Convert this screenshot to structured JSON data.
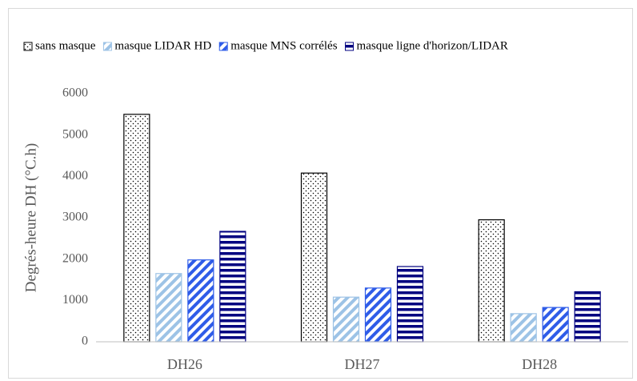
{
  "chart_data": {
    "type": "bar",
    "y_label": "Degrés-heure DH (°C.h)",
    "categories": [
      "DH26",
      "DH27",
      "DH28"
    ],
    "series": [
      {
        "name": "sans masque",
        "color": "#000000",
        "pattern": "dots",
        "values": [
          5500,
          4080,
          2950
        ]
      },
      {
        "name": "masque LIDAR HD",
        "color": "#9dc3e6",
        "pattern": "diagonal",
        "values": [
          1650,
          1080,
          680
        ]
      },
      {
        "name": "masque MNS corrélés",
        "color": "#2f5ce8",
        "pattern": "diagonal",
        "values": [
          1980,
          1300,
          830
        ]
      },
      {
        "name": "masque ligne d'horizon/LIDAR",
        "color": "#000080",
        "pattern": "horizontal",
        "values": [
          2670,
          1820,
          1210
        ]
      }
    ],
    "ylim": [
      0,
      6000
    ],
    "yticks": [
      0,
      1000,
      2000,
      3000,
      4000,
      5000,
      6000
    ],
    "grid": false,
    "legend": "top"
  }
}
